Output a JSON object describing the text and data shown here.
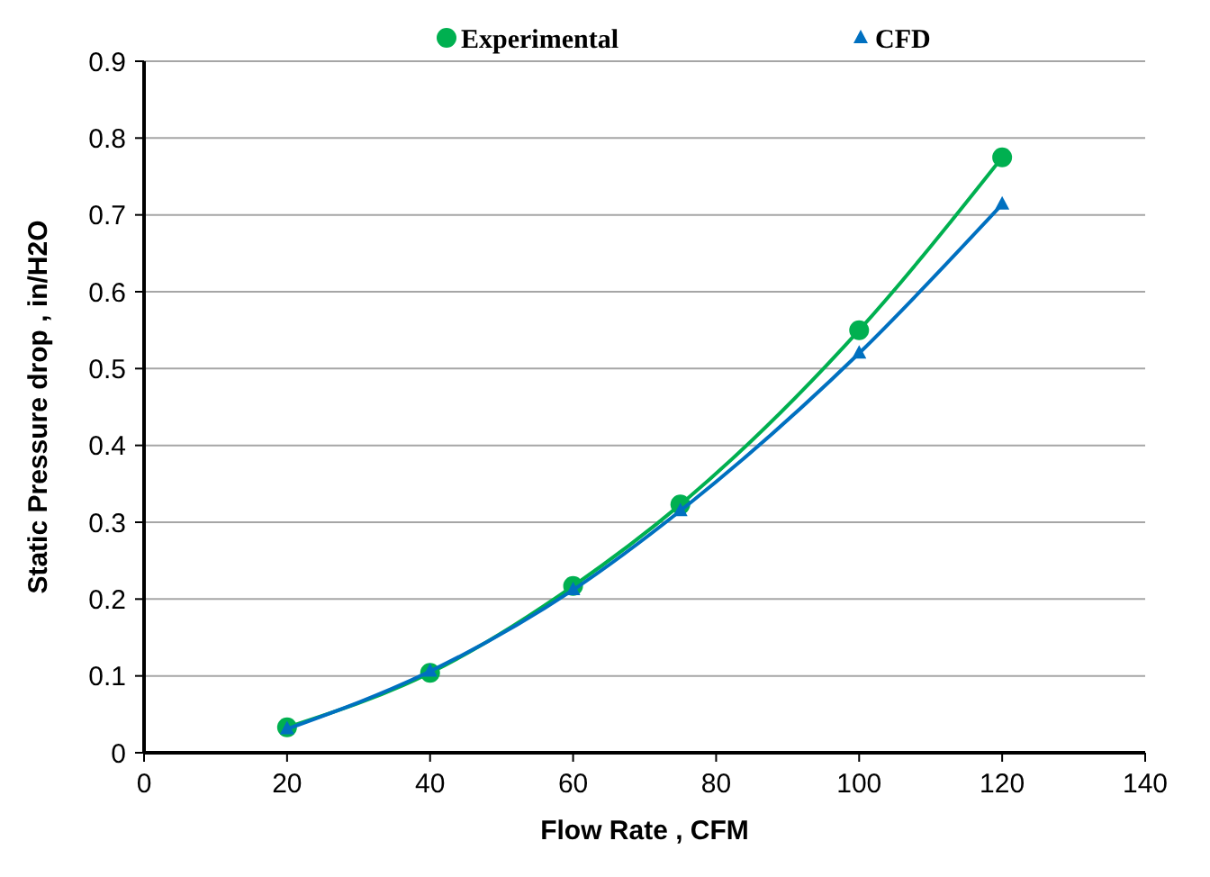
{
  "chart_data": {
    "type": "line",
    "xlabel": "Flow Rate , CFM",
    "ylabel": "Static Pressure drop , in/H2O",
    "x": [
      20,
      40,
      60,
      75,
      100,
      120
    ],
    "series": [
      {
        "name": "Experimental",
        "color": "#00b050",
        "marker": "circle",
        "values": [
          0.033,
          0.104,
          0.217,
          0.323,
          0.55,
          0.775
        ]
      },
      {
        "name": "CFD",
        "color": "#0070c0",
        "marker": "triangle",
        "values": [
          0.031,
          0.106,
          0.212,
          0.315,
          0.52,
          0.714
        ]
      }
    ],
    "xlim": [
      0,
      140
    ],
    "xticks": [
      0,
      20,
      40,
      60,
      80,
      100,
      120,
      140
    ],
    "ylim": [
      0,
      0.9
    ],
    "yticks": [
      0,
      0.1,
      0.2,
      0.3,
      0.4,
      0.5,
      0.6,
      0.7,
      0.8,
      0.9
    ],
    "grid": "y",
    "legend": "top",
    "line_style": "solid"
  }
}
